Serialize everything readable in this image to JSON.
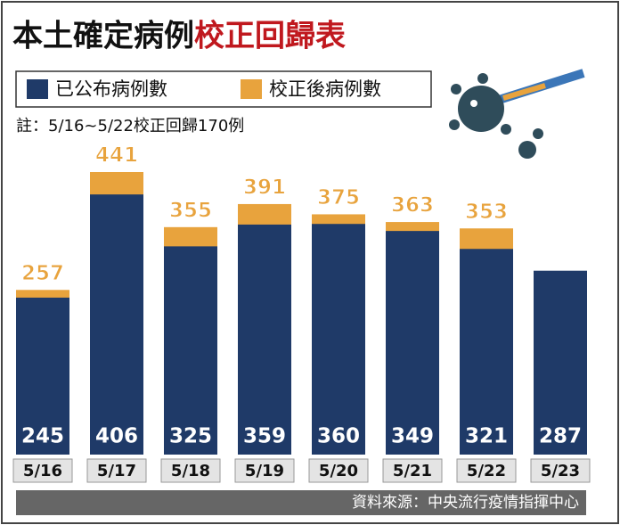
{
  "chart_data": {
    "type": "bar",
    "title": "本土確定病例",
    "title_highlight": "校正回歸表",
    "note": "註：5/16~5/22校正回歸170例",
    "source": "資料來源：中央流行疫情指揮中心",
    "categories": [
      "5/16",
      "5/17",
      "5/18",
      "5/19",
      "5/20",
      "5/21",
      "5/22",
      "5/23"
    ],
    "series": [
      {
        "name": "已公布病例數",
        "color": "#1f3a68",
        "values": [
          245,
          406,
          325,
          359,
          360,
          349,
          321,
          287
        ]
      },
      {
        "name": "校正後病例數",
        "color": "#e8a33d",
        "values": [
          257,
          441,
          355,
          391,
          375,
          363,
          353,
          null
        ]
      }
    ]
  }
}
